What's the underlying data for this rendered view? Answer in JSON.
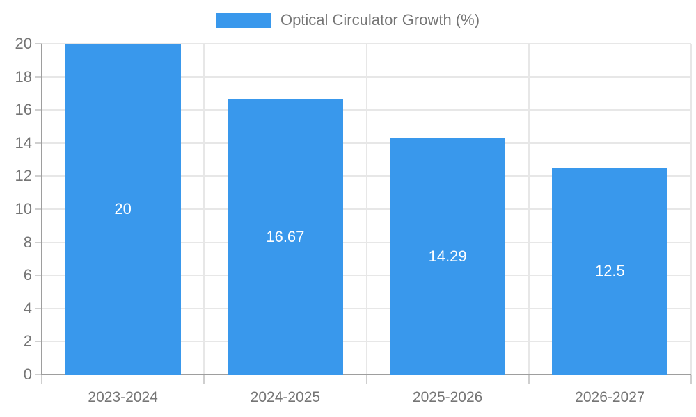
{
  "chart_data": {
    "type": "bar",
    "title": "Optical Circulator Growth (%)",
    "legend": {
      "label": "Optical Circulator Growth (%)",
      "position": "top"
    },
    "categories": [
      "2023-2024",
      "2024-2025",
      "2025-2026",
      "2026-2027"
    ],
    "values": [
      20,
      16.67,
      14.29,
      12.5
    ],
    "value_labels": [
      "20",
      "16.67",
      "14.29",
      "12.5"
    ],
    "xlabel": "",
    "ylabel": "",
    "ylim": [
      0,
      20
    ],
    "ytick_step": 2,
    "yticks": [
      0,
      2,
      4,
      6,
      8,
      10,
      12,
      14,
      16,
      18,
      20
    ],
    "grid": true,
    "legend_position": "top",
    "colors": {
      "bar": "#3998EC",
      "grid": "#E7E7E7",
      "tick": "#CFCFCF",
      "axis": "#9E9E9E",
      "tick_label": "#757575",
      "legend_label": "#757575",
      "value_label": "#FFFFFF",
      "background": "#FFFFFF"
    }
  }
}
